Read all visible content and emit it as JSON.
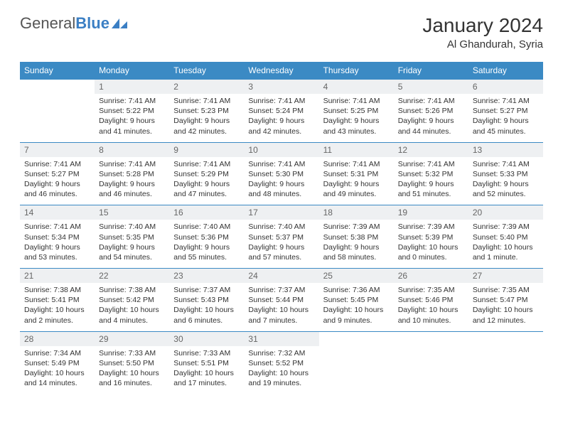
{
  "brand": {
    "part1": "General",
    "part2": "Blue"
  },
  "title": "January 2024",
  "location": "Al Ghandurah, Syria",
  "colors": {
    "accent": "#3b8ac4",
    "row_bg": "#eef0f2"
  },
  "day_headers": [
    "Sunday",
    "Monday",
    "Tuesday",
    "Wednesday",
    "Thursday",
    "Friday",
    "Saturday"
  ],
  "weeks": [
    [
      {
        "n": "",
        "lines": []
      },
      {
        "n": "1",
        "lines": [
          "Sunrise: 7:41 AM",
          "Sunset: 5:22 PM",
          "Daylight: 9 hours",
          "and 41 minutes."
        ]
      },
      {
        "n": "2",
        "lines": [
          "Sunrise: 7:41 AM",
          "Sunset: 5:23 PM",
          "Daylight: 9 hours",
          "and 42 minutes."
        ]
      },
      {
        "n": "3",
        "lines": [
          "Sunrise: 7:41 AM",
          "Sunset: 5:24 PM",
          "Daylight: 9 hours",
          "and 42 minutes."
        ]
      },
      {
        "n": "4",
        "lines": [
          "Sunrise: 7:41 AM",
          "Sunset: 5:25 PM",
          "Daylight: 9 hours",
          "and 43 minutes."
        ]
      },
      {
        "n": "5",
        "lines": [
          "Sunrise: 7:41 AM",
          "Sunset: 5:26 PM",
          "Daylight: 9 hours",
          "and 44 minutes."
        ]
      },
      {
        "n": "6",
        "lines": [
          "Sunrise: 7:41 AM",
          "Sunset: 5:27 PM",
          "Daylight: 9 hours",
          "and 45 minutes."
        ]
      }
    ],
    [
      {
        "n": "7",
        "lines": [
          "Sunrise: 7:41 AM",
          "Sunset: 5:27 PM",
          "Daylight: 9 hours",
          "and 46 minutes."
        ]
      },
      {
        "n": "8",
        "lines": [
          "Sunrise: 7:41 AM",
          "Sunset: 5:28 PM",
          "Daylight: 9 hours",
          "and 46 minutes."
        ]
      },
      {
        "n": "9",
        "lines": [
          "Sunrise: 7:41 AM",
          "Sunset: 5:29 PM",
          "Daylight: 9 hours",
          "and 47 minutes."
        ]
      },
      {
        "n": "10",
        "lines": [
          "Sunrise: 7:41 AM",
          "Sunset: 5:30 PM",
          "Daylight: 9 hours",
          "and 48 minutes."
        ]
      },
      {
        "n": "11",
        "lines": [
          "Sunrise: 7:41 AM",
          "Sunset: 5:31 PM",
          "Daylight: 9 hours",
          "and 49 minutes."
        ]
      },
      {
        "n": "12",
        "lines": [
          "Sunrise: 7:41 AM",
          "Sunset: 5:32 PM",
          "Daylight: 9 hours",
          "and 51 minutes."
        ]
      },
      {
        "n": "13",
        "lines": [
          "Sunrise: 7:41 AM",
          "Sunset: 5:33 PM",
          "Daylight: 9 hours",
          "and 52 minutes."
        ]
      }
    ],
    [
      {
        "n": "14",
        "lines": [
          "Sunrise: 7:41 AM",
          "Sunset: 5:34 PM",
          "Daylight: 9 hours",
          "and 53 minutes."
        ]
      },
      {
        "n": "15",
        "lines": [
          "Sunrise: 7:40 AM",
          "Sunset: 5:35 PM",
          "Daylight: 9 hours",
          "and 54 minutes."
        ]
      },
      {
        "n": "16",
        "lines": [
          "Sunrise: 7:40 AM",
          "Sunset: 5:36 PM",
          "Daylight: 9 hours",
          "and 55 minutes."
        ]
      },
      {
        "n": "17",
        "lines": [
          "Sunrise: 7:40 AM",
          "Sunset: 5:37 PM",
          "Daylight: 9 hours",
          "and 57 minutes."
        ]
      },
      {
        "n": "18",
        "lines": [
          "Sunrise: 7:39 AM",
          "Sunset: 5:38 PM",
          "Daylight: 9 hours",
          "and 58 minutes."
        ]
      },
      {
        "n": "19",
        "lines": [
          "Sunrise: 7:39 AM",
          "Sunset: 5:39 PM",
          "Daylight: 10 hours",
          "and 0 minutes."
        ]
      },
      {
        "n": "20",
        "lines": [
          "Sunrise: 7:39 AM",
          "Sunset: 5:40 PM",
          "Daylight: 10 hours",
          "and 1 minute."
        ]
      }
    ],
    [
      {
        "n": "21",
        "lines": [
          "Sunrise: 7:38 AM",
          "Sunset: 5:41 PM",
          "Daylight: 10 hours",
          "and 2 minutes."
        ]
      },
      {
        "n": "22",
        "lines": [
          "Sunrise: 7:38 AM",
          "Sunset: 5:42 PM",
          "Daylight: 10 hours",
          "and 4 minutes."
        ]
      },
      {
        "n": "23",
        "lines": [
          "Sunrise: 7:37 AM",
          "Sunset: 5:43 PM",
          "Daylight: 10 hours",
          "and 6 minutes."
        ]
      },
      {
        "n": "24",
        "lines": [
          "Sunrise: 7:37 AM",
          "Sunset: 5:44 PM",
          "Daylight: 10 hours",
          "and 7 minutes."
        ]
      },
      {
        "n": "25",
        "lines": [
          "Sunrise: 7:36 AM",
          "Sunset: 5:45 PM",
          "Daylight: 10 hours",
          "and 9 minutes."
        ]
      },
      {
        "n": "26",
        "lines": [
          "Sunrise: 7:35 AM",
          "Sunset: 5:46 PM",
          "Daylight: 10 hours",
          "and 10 minutes."
        ]
      },
      {
        "n": "27",
        "lines": [
          "Sunrise: 7:35 AM",
          "Sunset: 5:47 PM",
          "Daylight: 10 hours",
          "and 12 minutes."
        ]
      }
    ],
    [
      {
        "n": "28",
        "lines": [
          "Sunrise: 7:34 AM",
          "Sunset: 5:49 PM",
          "Daylight: 10 hours",
          "and 14 minutes."
        ]
      },
      {
        "n": "29",
        "lines": [
          "Sunrise: 7:33 AM",
          "Sunset: 5:50 PM",
          "Daylight: 10 hours",
          "and 16 minutes."
        ]
      },
      {
        "n": "30",
        "lines": [
          "Sunrise: 7:33 AM",
          "Sunset: 5:51 PM",
          "Daylight: 10 hours",
          "and 17 minutes."
        ]
      },
      {
        "n": "31",
        "lines": [
          "Sunrise: 7:32 AM",
          "Sunset: 5:52 PM",
          "Daylight: 10 hours",
          "and 19 minutes."
        ]
      },
      {
        "n": "",
        "lines": []
      },
      {
        "n": "",
        "lines": []
      },
      {
        "n": "",
        "lines": []
      }
    ]
  ]
}
